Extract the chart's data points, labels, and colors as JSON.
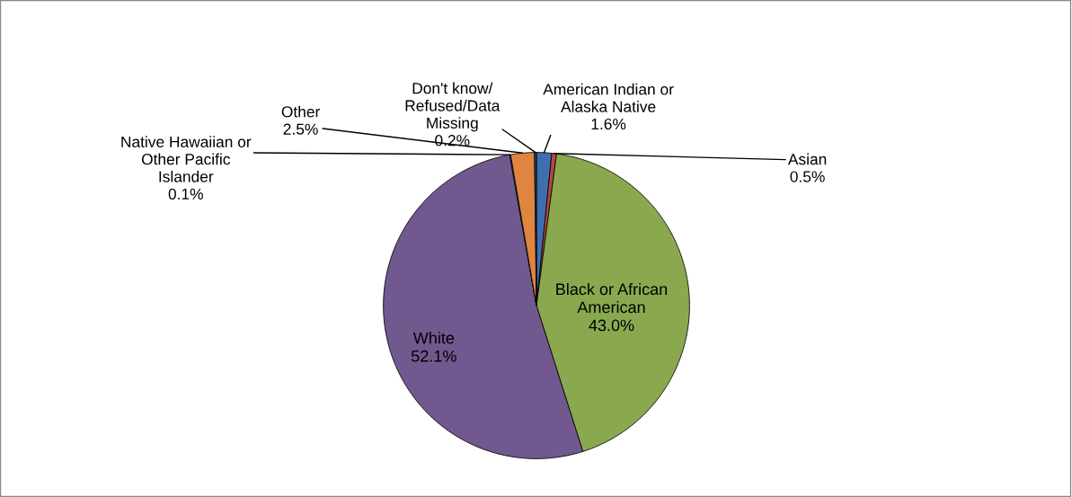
{
  "chart_data": {
    "type": "pie",
    "categories": [
      "American Indian or\nAlaska Native",
      "Asian",
      "Black or African\nAmerican",
      "White",
      "Native Hawaiian or\nOther Pacific\nIslander",
      "Other",
      "Don't know/\nRefused/Data\nMissing"
    ],
    "values": [
      1.6,
      0.5,
      43.0,
      52.1,
      0.1,
      2.5,
      0.2
    ],
    "value_labels": [
      "1.6%",
      "0.5%",
      "43.0%",
      "52.1%",
      "0.1%",
      "2.5%",
      "0.2%"
    ],
    "colors": [
      "#3f6fae",
      "#b9473f",
      "#8aa94f",
      "#71588f",
      "#3a9ab4",
      "#e0853f",
      "#2c4d75"
    ],
    "legend": false
  }
}
